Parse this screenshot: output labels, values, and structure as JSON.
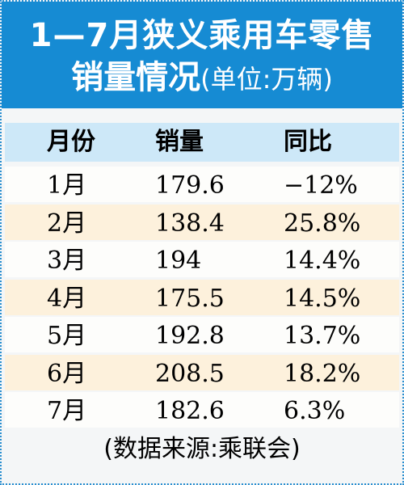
{
  "header": {
    "title": "1—7月狭义乘用车零售",
    "subtitle": "销量情况",
    "unit": "(单位:万辆)"
  },
  "table": {
    "columns": [
      "月份",
      "销量",
      "同比"
    ],
    "rows": [
      [
        "1月",
        "179.6",
        "−12%"
      ],
      [
        "2月",
        "138.4",
        "25.8%"
      ],
      [
        "3月",
        "194",
        "14.4%"
      ],
      [
        "4月",
        "175.5",
        "14.5%"
      ],
      [
        "5月",
        "192.8",
        "13.7%"
      ],
      [
        "6月",
        "208.5",
        "18.2%"
      ],
      [
        "7月",
        "182.6",
        "6.3%"
      ]
    ]
  },
  "footer": {
    "source": "(数据来源:乘联会)"
  }
}
